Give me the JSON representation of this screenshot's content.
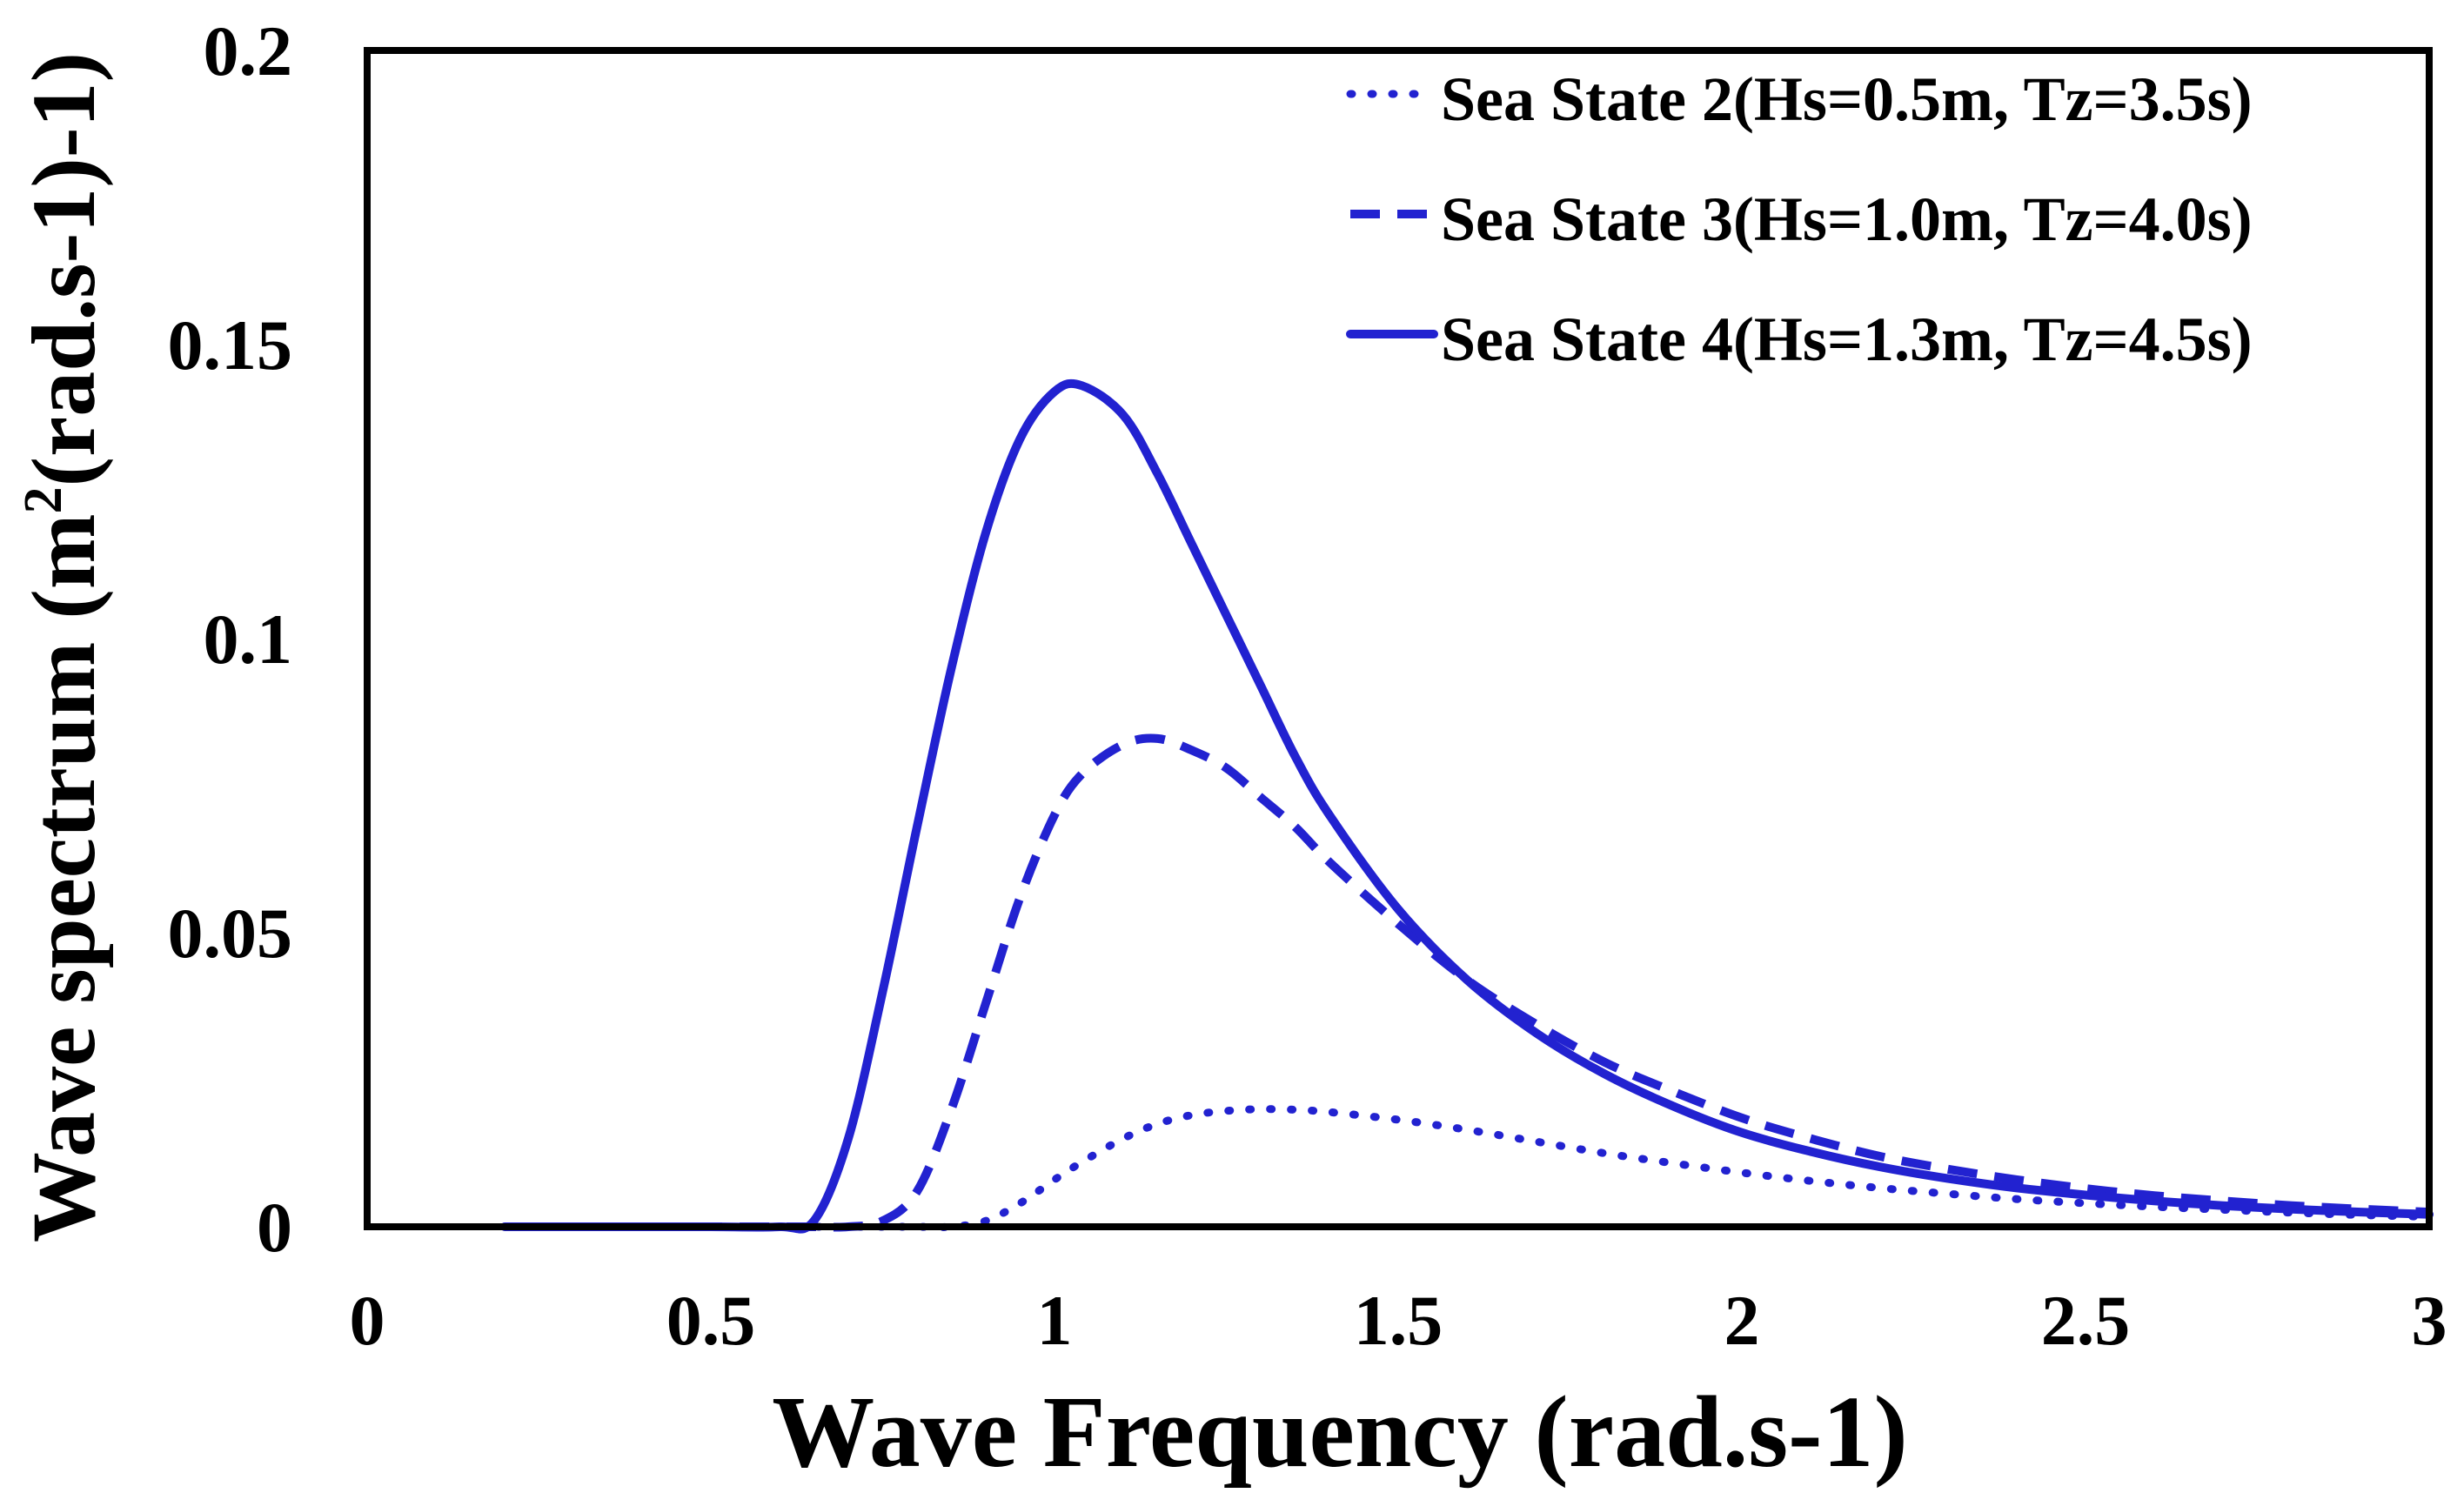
{
  "chart_data": {
    "type": "line",
    "title": "",
    "xlabel": "Wave Frequency (rad.s-1)",
    "ylabel_parts": [
      "Wave spectrum (m",
      "2",
      "(rad.s-1)-1)"
    ],
    "xlim": [
      0,
      3
    ],
    "ylim": [
      0,
      0.2
    ],
    "xticks": [
      0,
      0.5,
      1,
      1.5,
      2,
      2.5,
      3
    ],
    "xtick_labels": [
      "0",
      "0.5",
      "1",
      "1.5",
      "2",
      "2.5",
      "3"
    ],
    "yticks": [
      0,
      0.05,
      0.1,
      0.15,
      0.2
    ],
    "ytick_labels": [
      "0",
      "0.05",
      "0.1",
      "0.15",
      "0.2"
    ],
    "grid": false,
    "legend_position": "top-right",
    "line_color": "#2222d0",
    "x": [
      0.2,
      0.3,
      0.4,
      0.5,
      0.6,
      0.65,
      0.7,
      0.75,
      0.8,
      0.85,
      0.9,
      0.95,
      1.0,
      1.04,
      1.1,
      1.15,
      1.2,
      1.25,
      1.3,
      1.35,
      1.4,
      1.5,
      1.6,
      1.7,
      1.8,
      1.9,
      2.0,
      2.1,
      2.2,
      2.3,
      2.4,
      2.5,
      2.6,
      2.7,
      2.8,
      2.9,
      3.0
    ],
    "series": [
      {
        "name": "Sea State 2(Hs=0.5m, Tz=3.5s)",
        "style": "dotted",
        "values": [
          0,
          0,
          0,
          0,
          0,
          0,
          0,
          0,
          0,
          0,
          0.001,
          0.004,
          0.008,
          0.011,
          0.015,
          0.0175,
          0.019,
          0.0197,
          0.02,
          0.0199,
          0.0195,
          0.0182,
          0.0165,
          0.0145,
          0.0125,
          0.0108,
          0.0092,
          0.0078,
          0.0066,
          0.0056,
          0.0047,
          0.004,
          0.0034,
          0.0029,
          0.0024,
          0.002,
          0.0017
        ]
      },
      {
        "name": "Sea State 3(Hs=1.0m, Tz=4.0s)",
        "style": "dashed",
        "values": [
          0,
          0,
          0,
          0,
          0,
          0,
          0,
          0.001,
          0.006,
          0.02,
          0.038,
          0.056,
          0.07,
          0.077,
          0.082,
          0.083,
          0.081,
          0.078,
          0.073,
          0.068,
          0.062,
          0.0515,
          0.042,
          0.0345,
          0.028,
          0.023,
          0.0185,
          0.015,
          0.012,
          0.0098,
          0.008,
          0.0065,
          0.0053,
          0.0044,
          0.0036,
          0.003,
          0.0025
        ]
      },
      {
        "name": "Sea State 4(Hs=1.3m, Tz=4.5s)",
        "style": "solid",
        "values": [
          0,
          0,
          0,
          0,
          0,
          0.001,
          0.015,
          0.04,
          0.068,
          0.095,
          0.118,
          0.134,
          0.142,
          0.143,
          0.138,
          0.128,
          0.116,
          0.104,
          0.092,
          0.08,
          0.07,
          0.054,
          0.042,
          0.033,
          0.026,
          0.0205,
          0.016,
          0.0128,
          0.0102,
          0.0082,
          0.0066,
          0.0054,
          0.0044,
          0.0036,
          0.003,
          0.0025,
          0.0021
        ]
      }
    ]
  }
}
